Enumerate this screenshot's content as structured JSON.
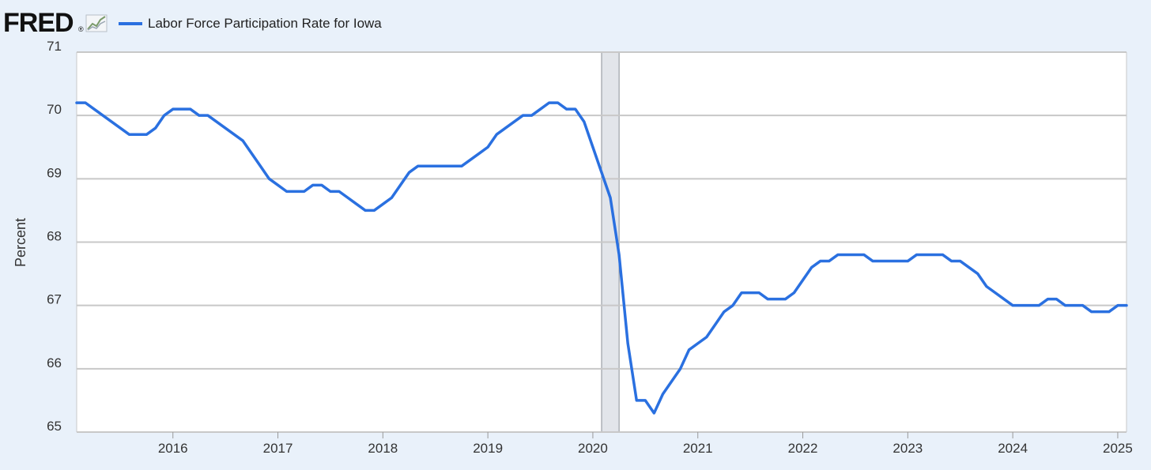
{
  "brand": {
    "logo_text": "FRED",
    "logo_mark": "®",
    "logo_icon": "sparkline-chart-icon"
  },
  "chart_data": {
    "type": "line",
    "legend": [
      "Labor Force Participation Rate for Iowa"
    ],
    "legend_placement": "top-left",
    "ylabel": "Percent",
    "xlabel": "",
    "ylim": [
      65,
      71
    ],
    "yticks": [
      65,
      66,
      67,
      68,
      69,
      70,
      71
    ],
    "xlim": [
      "2015-02",
      "2025-02"
    ],
    "xticks": [
      "2016",
      "2017",
      "2018",
      "2019",
      "2020",
      "2021",
      "2022",
      "2023",
      "2024",
      "2025"
    ],
    "grid": "horizontal",
    "recession_shading": [
      {
        "start": "2020-02",
        "end": "2020-04"
      }
    ],
    "colors": {
      "series": "#2a70e0",
      "shade": "#e2e5ea",
      "grid": "#c8c8c8",
      "background": "#e9f1fa",
      "plot": "#ffffff"
    },
    "series": [
      {
        "name": "Labor Force Participation Rate for Iowa",
        "x": [
          "2015-02",
          "2015-03",
          "2015-04",
          "2015-05",
          "2015-06",
          "2015-07",
          "2015-08",
          "2015-09",
          "2015-10",
          "2015-11",
          "2015-12",
          "2016-01",
          "2016-02",
          "2016-03",
          "2016-04",
          "2016-05",
          "2016-06",
          "2016-07",
          "2016-08",
          "2016-09",
          "2016-10",
          "2016-11",
          "2016-12",
          "2017-01",
          "2017-02",
          "2017-03",
          "2017-04",
          "2017-05",
          "2017-06",
          "2017-07",
          "2017-08",
          "2017-09",
          "2017-10",
          "2017-11",
          "2017-12",
          "2018-01",
          "2018-02",
          "2018-03",
          "2018-04",
          "2018-05",
          "2018-06",
          "2018-07",
          "2018-08",
          "2018-09",
          "2018-10",
          "2018-11",
          "2018-12",
          "2019-01",
          "2019-02",
          "2019-03",
          "2019-04",
          "2019-05",
          "2019-06",
          "2019-07",
          "2019-08",
          "2019-09",
          "2019-10",
          "2019-11",
          "2019-12",
          "2020-01",
          "2020-02",
          "2020-03",
          "2020-04",
          "2020-05",
          "2020-06",
          "2020-07",
          "2020-08",
          "2020-09",
          "2020-10",
          "2020-11",
          "2020-12",
          "2021-01",
          "2021-02",
          "2021-03",
          "2021-04",
          "2021-05",
          "2021-06",
          "2021-07",
          "2021-08",
          "2021-09",
          "2021-10",
          "2021-11",
          "2021-12",
          "2022-01",
          "2022-02",
          "2022-03",
          "2022-04",
          "2022-05",
          "2022-06",
          "2022-07",
          "2022-08",
          "2022-09",
          "2022-10",
          "2022-11",
          "2022-12",
          "2023-01",
          "2023-02",
          "2023-03",
          "2023-04",
          "2023-05",
          "2023-06",
          "2023-07",
          "2023-08",
          "2023-09",
          "2023-10",
          "2023-11",
          "2023-12",
          "2024-01",
          "2024-02",
          "2024-03",
          "2024-04",
          "2024-05",
          "2024-06",
          "2024-07",
          "2024-08",
          "2024-09",
          "2024-10",
          "2024-11",
          "2024-12",
          "2025-01",
          "2025-02"
        ],
        "values": [
          70.2,
          70.2,
          70.1,
          70.0,
          69.9,
          69.8,
          69.7,
          69.7,
          69.7,
          69.8,
          70.0,
          70.1,
          70.1,
          70.1,
          70.0,
          70.0,
          69.9,
          69.8,
          69.7,
          69.6,
          69.4,
          69.2,
          69.0,
          68.9,
          68.8,
          68.8,
          68.8,
          68.9,
          68.9,
          68.8,
          68.8,
          68.7,
          68.6,
          68.5,
          68.5,
          68.6,
          68.7,
          68.9,
          69.1,
          69.2,
          69.2,
          69.2,
          69.2,
          69.2,
          69.2,
          69.3,
          69.4,
          69.5,
          69.7,
          69.8,
          69.9,
          70.0,
          70.0,
          70.1,
          70.2,
          70.2,
          70.1,
          70.1,
          69.9,
          69.5,
          69.1,
          68.7,
          67.8,
          66.4,
          65.5,
          65.5,
          65.3,
          65.6,
          65.8,
          66.0,
          66.3,
          66.4,
          66.5,
          66.7,
          66.9,
          67.0,
          67.2,
          67.2,
          67.2,
          67.1,
          67.1,
          67.1,
          67.2,
          67.4,
          67.6,
          67.7,
          67.7,
          67.8,
          67.8,
          67.8,
          67.8,
          67.7,
          67.7,
          67.7,
          67.7,
          67.7,
          67.8,
          67.8,
          67.8,
          67.8,
          67.7,
          67.7,
          67.6,
          67.5,
          67.3,
          67.2,
          67.1,
          67.0,
          67.0,
          67.0,
          67.0,
          67.1,
          67.1,
          67.0,
          67.0,
          67.0,
          66.9,
          66.9,
          66.9,
          67.0,
          67.0
        ]
      }
    ]
  }
}
